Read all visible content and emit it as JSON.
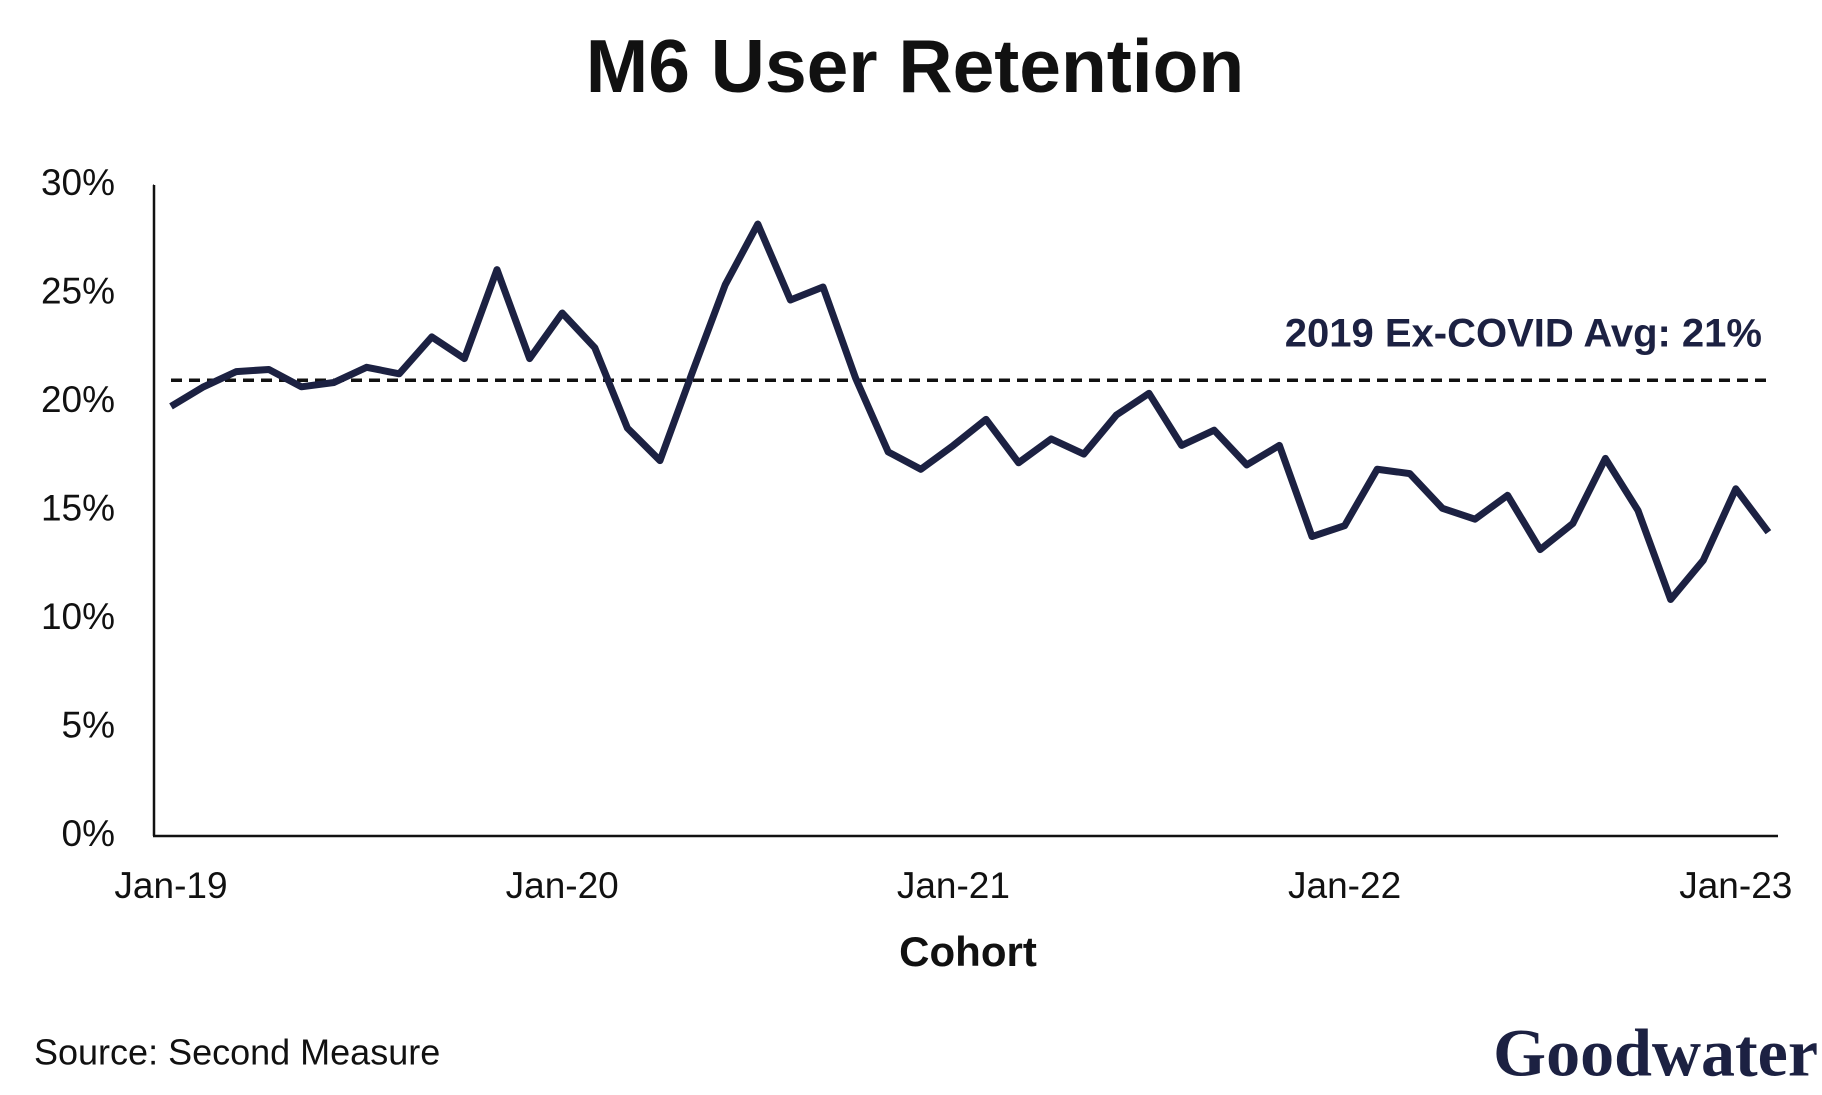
{
  "chart_data": {
    "type": "line",
    "title": "M6 User Retention",
    "x_label": "Cohort",
    "categories": [
      "Jan-19",
      null,
      null,
      null,
      null,
      null,
      null,
      null,
      null,
      null,
      null,
      null,
      "Jan-20",
      null,
      null,
      null,
      null,
      null,
      null,
      null,
      null,
      null,
      null,
      null,
      "Jan-21",
      null,
      null,
      null,
      null,
      null,
      null,
      null,
      null,
      null,
      null,
      null,
      "Jan-22",
      null,
      null,
      null,
      null,
      null,
      null,
      null,
      null,
      null,
      null,
      null,
      "Jan-23",
      null
    ],
    "series": [
      {
        "name": "M6 User Retention",
        "color": "#1c2142",
        "values": [
          19.8,
          20.7,
          21.4,
          21.5,
          20.7,
          20.9,
          21.6,
          21.3,
          23.0,
          22.0,
          26.1,
          22.0,
          24.1,
          22.5,
          18.8,
          17.3,
          21.4,
          25.4,
          28.2,
          24.7,
          25.3,
          21.1,
          17.7,
          16.9,
          18.0,
          19.2,
          17.2,
          18.3,
          17.6,
          19.4,
          20.4,
          18.0,
          18.7,
          17.1,
          18.0,
          13.8,
          14.3,
          16.9,
          16.7,
          15.1,
          14.6,
          15.7,
          13.2,
          14.4,
          17.4,
          15.0,
          10.9,
          12.7,
          16.0,
          14.0
        ]
      }
    ],
    "reference_line": {
      "value": 21,
      "label": "2019 Ex-COVID Avg: 21%",
      "color": "#111111"
    },
    "ylim": [
      0,
      30
    ],
    "yticks": [
      {
        "value": 0,
        "label": "0%"
      },
      {
        "value": 5,
        "label": "5%"
      },
      {
        "value": 10,
        "label": "10%"
      },
      {
        "value": 15,
        "label": "15%"
      },
      {
        "value": 20,
        "label": "20%"
      },
      {
        "value": 25,
        "label": "25%"
      },
      {
        "value": 30,
        "label": "30%"
      }
    ],
    "grid": false,
    "source": "Source: Second Measure",
    "logo": "Goodwater"
  }
}
